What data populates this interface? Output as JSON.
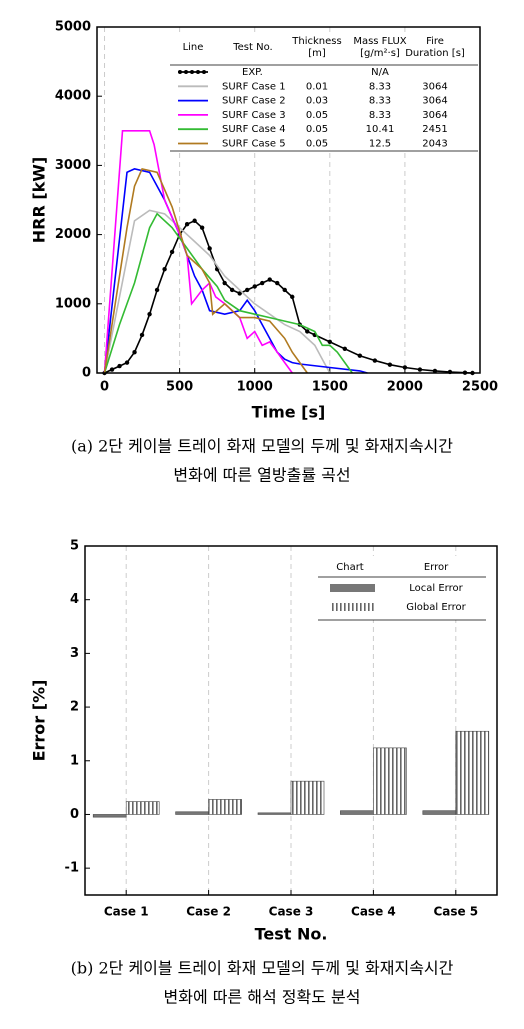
{
  "chart_data": [
    {
      "type": "line",
      "xlabel": "Time [s]",
      "ylabel": "HRR [kW]",
      "xlim": [
        -50,
        2500
      ],
      "xticks": [
        0,
        500,
        1000,
        1500,
        2000,
        2500
      ],
      "ylim": [
        0,
        5000
      ],
      "yticks": [
        0,
        1000,
        2000,
        3000,
        4000,
        5000
      ],
      "grid": true,
      "series": [
        {
          "name": "EXP.",
          "color": "#000000",
          "marker": "circle",
          "x": [
            0,
            50,
            100,
            150,
            200,
            250,
            300,
            350,
            400,
            450,
            500,
            550,
            600,
            650,
            700,
            750,
            800,
            850,
            900,
            950,
            1000,
            1050,
            1100,
            1150,
            1200,
            1250,
            1300,
            1350,
            1400,
            1500,
            1600,
            1700,
            1800,
            1900,
            2000,
            2100,
            2200,
            2300,
            2400,
            2450
          ],
          "values": [
            0,
            50,
            100,
            150,
            300,
            550,
            850,
            1200,
            1500,
            1750,
            2000,
            2150,
            2200,
            2100,
            1800,
            1500,
            1300,
            1200,
            1150,
            1200,
            1250,
            1300,
            1350,
            1300,
            1200,
            1100,
            700,
            600,
            550,
            450,
            350,
            250,
            180,
            120,
            80,
            50,
            30,
            15,
            5,
            0
          ]
        },
        {
          "name": "SURF Case 1",
          "color": "#bbbbbb",
          "x": [
            0,
            200,
            300,
            400,
            500,
            600,
            700,
            800,
            900,
            1000,
            1100,
            1200,
            1300,
            1400,
            1450,
            1500
          ],
          "values": [
            0,
            2200,
            2350,
            2300,
            2100,
            1900,
            1700,
            1400,
            1200,
            1000,
            850,
            700,
            600,
            400,
            200,
            0
          ]
        },
        {
          "name": "SURF Case 2",
          "color": "#0000ff",
          "x": [
            0,
            150,
            200,
            300,
            400,
            500,
            600,
            650,
            700,
            800,
            900,
            950,
            1000,
            1050,
            1100,
            1150,
            1200,
            1250,
            1300,
            1500,
            1700,
            1750
          ],
          "values": [
            0,
            2900,
            2950,
            2900,
            2500,
            2000,
            1400,
            1200,
            900,
            850,
            900,
            1050,
            900,
            700,
            500,
            300,
            200,
            150,
            130,
            80,
            30,
            0
          ]
        },
        {
          "name": "SURF Case 3",
          "color": "#ff00ff",
          "x": [
            0,
            120,
            300,
            330,
            400,
            500,
            550,
            580,
            650,
            700,
            740,
            800,
            900,
            950,
            1000,
            1050,
            1100,
            1150,
            1200,
            1250
          ],
          "values": [
            0,
            3500,
            3500,
            3300,
            2500,
            2000,
            1700,
            1000,
            1200,
            1300,
            1100,
            1000,
            800,
            500,
            600,
            400,
            450,
            300,
            150,
            0
          ]
        },
        {
          "name": "SURF Case 4",
          "color": "#33bb33",
          "x": [
            0,
            100,
            200,
            300,
            350,
            450,
            550,
            650,
            750,
            800,
            900,
            1000,
            1100,
            1200,
            1300,
            1400,
            1450,
            1500,
            1550,
            1650
          ],
          "values": [
            0,
            700,
            1300,
            2100,
            2300,
            2100,
            1800,
            1500,
            1250,
            1050,
            900,
            850,
            800,
            750,
            700,
            600,
            400,
            400,
            300,
            0
          ]
        },
        {
          "name": "SURF Case 5",
          "color": "#b07a20",
          "x": [
            0,
            150,
            200,
            250,
            350,
            450,
            550,
            650,
            700,
            720,
            800,
            900,
            1000,
            1100,
            1200,
            1250,
            1300,
            1350
          ],
          "values": [
            0,
            2100,
            2700,
            2950,
            2900,
            2400,
            1700,
            1500,
            1300,
            850,
            1000,
            800,
            800,
            750,
            500,
            300,
            150,
            0
          ]
        }
      ],
      "legend_table": {
        "headers": [
          [
            "Line"
          ],
          [
            "Test No."
          ],
          [
            "Thickness",
            "[m]"
          ],
          [
            "Mass FLUX",
            "[g/m²·s]"
          ],
          [
            "Fire",
            "Duration [s]"
          ]
        ],
        "rows": [
          [
            "N/A"
          ],
          [
            0.01,
            8.33,
            3064
          ],
          [
            0.03,
            8.33,
            3064
          ],
          [
            0.05,
            8.33,
            3064
          ],
          [
            0.05,
            10.41,
            2451
          ],
          [
            0.05,
            12.5,
            2043
          ]
        ]
      },
      "caption": [
        "(a) 2단 케이블 트레이 화재 모델의 두께 및 화재지속시간",
        "변화에 따른 열방출률 곡선"
      ]
    },
    {
      "type": "bar",
      "xlabel": "Test No.",
      "ylabel": "Error [%]",
      "categories": [
        "Case 1",
        "Case 2",
        "Case 3",
        "Case 4",
        "Case 5"
      ],
      "ylim": [
        -1.5,
        5
      ],
      "yticks": [
        -1,
        0,
        1,
        2,
        3,
        4,
        5
      ],
      "grid": true,
      "series": [
        {
          "name": "Local Error",
          "color": "#777777",
          "hatch": false,
          "values": [
            -0.05,
            0.05,
            0.03,
            0.07,
            0.07
          ]
        },
        {
          "name": "Global Error",
          "color": "#666666",
          "hatch": true,
          "values": [
            0.24,
            0.28,
            0.62,
            1.24,
            1.55
          ]
        }
      ],
      "legend_headers": [
        "Chart",
        "Error"
      ],
      "caption": [
        "(b) 2단 케이블 트레이 화재 모델의 두께 및 화재지속시간",
        "변화에 따른 해석 정확도 분석"
      ]
    }
  ]
}
